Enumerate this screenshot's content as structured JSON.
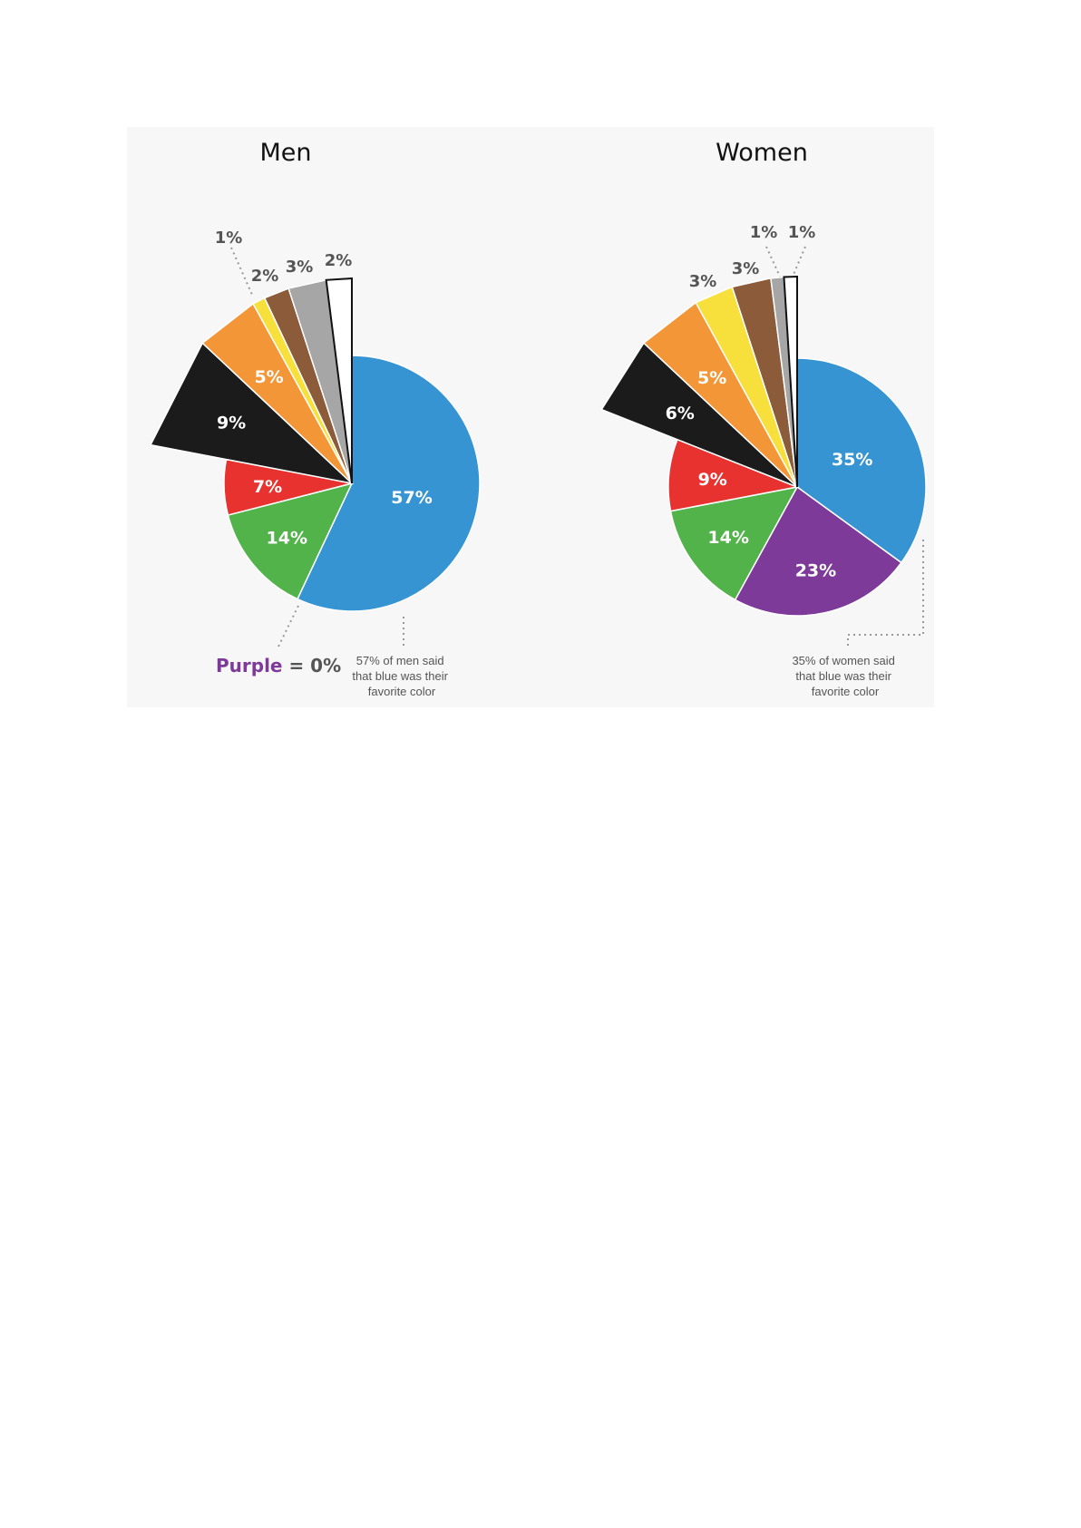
{
  "chart_data": [
    {
      "type": "pie",
      "title": "Men",
      "slices": [
        {
          "label": "57%",
          "value": 57,
          "color": "#3794d3"
        },
        {
          "label": "14%",
          "value": 14,
          "color": "#53b34b"
        },
        {
          "label": "7%",
          "value": 7,
          "color": "#e8322f"
        },
        {
          "label": "9%",
          "value": 9,
          "color": "#1b1b1b",
          "exploded": true
        },
        {
          "label": "5%",
          "value": 5,
          "color": "#f39637",
          "exploded": true
        },
        {
          "label": "1%",
          "value": 1,
          "color": "#f7df3c",
          "exploded": true
        },
        {
          "label": "2%",
          "value": 2,
          "color": "#8b5b3a",
          "exploded": true
        },
        {
          "label": "3%",
          "value": 3,
          "color": "#a6a6a6",
          "exploded": true
        },
        {
          "label": "2%",
          "value": 2,
          "color": "#ffffff",
          "exploded": true,
          "outlined": true
        }
      ],
      "annotations": {
        "purple_word": "Purple",
        "purple_rest": " = 0%",
        "note": [
          "57% of men said",
          "that blue was their",
          "favorite color"
        ]
      }
    },
    {
      "type": "pie",
      "title": "Women",
      "slices": [
        {
          "label": "35%",
          "value": 35,
          "color": "#3794d3"
        },
        {
          "label": "23%",
          "value": 23,
          "color": "#7d3a98"
        },
        {
          "label": "14%",
          "value": 14,
          "color": "#53b34b"
        },
        {
          "label": "9%",
          "value": 9,
          "color": "#e8322f"
        },
        {
          "label": "6%",
          "value": 6,
          "color": "#1b1b1b",
          "exploded": true
        },
        {
          "label": "5%",
          "value": 5,
          "color": "#f39637",
          "exploded": true
        },
        {
          "label": "3%",
          "value": 3,
          "color": "#f7df3c",
          "exploded": true
        },
        {
          "label": "3%",
          "value": 3,
          "color": "#8b5b3a",
          "exploded": true
        },
        {
          "label": "1%",
          "value": 1,
          "color": "#a6a6a6",
          "exploded": true
        },
        {
          "label": "1%",
          "value": 1,
          "color": "#ffffff",
          "exploded": true,
          "outlined": true
        }
      ],
      "annotations": {
        "note": [
          "35% of women said",
          "that blue was their",
          "favorite color"
        ]
      }
    }
  ]
}
